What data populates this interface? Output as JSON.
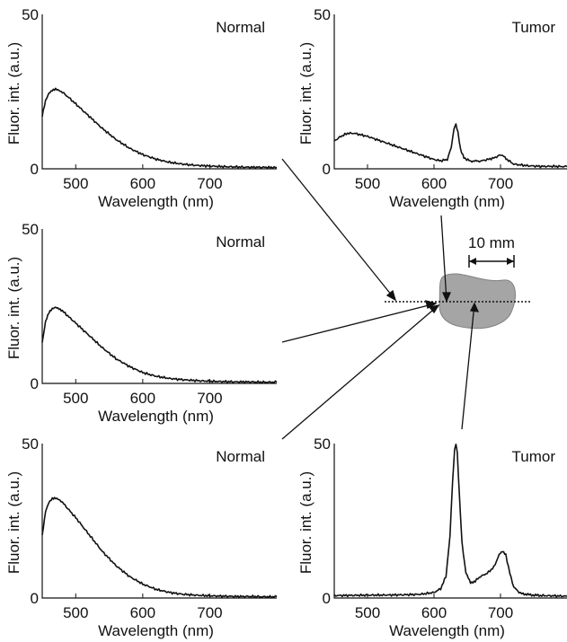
{
  "chart_data": [
    {
      "type": "line",
      "title": "Normal",
      "xlabel": "Wavelength (nm)",
      "ylabel": "Fluor. int. (a.u.)",
      "xlim": [
        450,
        800
      ],
      "ylim": [
        0,
        50
      ],
      "xticks": [
        "500",
        "600",
        "700"
      ],
      "yticks": [
        "0",
        "50"
      ],
      "series": [
        {
          "x": [
            450,
            455,
            460,
            465,
            470,
            475,
            480,
            490,
            500,
            520,
            540,
            560,
            580,
            600,
            620,
            640,
            660,
            680,
            700,
            720,
            740,
            760,
            780,
            800
          ],
          "y": [
            17,
            22,
            24.5,
            25.5,
            26,
            25.5,
            24.8,
            23,
            21,
            17,
            13,
            9.5,
            6.7,
            4.6,
            3.1,
            2.1,
            1.5,
            1.1,
            0.9,
            0.7,
            0.6,
            0.5,
            0.5,
            0.4
          ]
        }
      ]
    },
    {
      "type": "line",
      "title": "Tumor",
      "xlabel": "Wavelength (nm)",
      "ylabel": "Fluor. int. (a.u.)",
      "xlim": [
        450,
        800
      ],
      "ylim": [
        0,
        50
      ],
      "xticks": [
        "500",
        "600",
        "700"
      ],
      "yticks": [
        "0",
        "50"
      ],
      "series": [
        {
          "x": [
            450,
            460,
            470,
            480,
            490,
            500,
            520,
            540,
            560,
            580,
            600,
            610,
            620,
            626,
            630,
            633,
            636,
            640,
            645,
            655,
            670,
            690,
            700,
            705,
            710,
            720,
            740,
            760,
            780,
            800
          ],
          "y": [
            9,
            10.5,
            11.5,
            11.5,
            11,
            10.5,
            9,
            7.5,
            6,
            4.5,
            3,
            2.6,
            3,
            7,
            13,
            14.5,
            12,
            6,
            3.5,
            2.5,
            2.5,
            3.5,
            4.5,
            4.2,
            3,
            1.5,
            1,
            0.8,
            0.8,
            0.7
          ]
        }
      ]
    },
    {
      "type": "line",
      "title": "Normal",
      "xlabel": "Wavelength (nm)",
      "ylabel": "Fluor. int. (a.u.)",
      "xlim": [
        450,
        800
      ],
      "ylim": [
        0,
        50
      ],
      "xticks": [
        "500",
        "600",
        "700"
      ],
      "yticks": [
        "0",
        "50"
      ],
      "series": [
        {
          "x": [
            450,
            455,
            460,
            465,
            470,
            475,
            480,
            490,
            500,
            520,
            540,
            560,
            580,
            600,
            620,
            640,
            660,
            680,
            700,
            720,
            740,
            760,
            780,
            800
          ],
          "y": [
            13,
            20,
            23,
            24.3,
            24.8,
            24.3,
            23.5,
            21.5,
            19.5,
            15.5,
            11.5,
            8,
            5.5,
            3.5,
            2.3,
            1.6,
            1.2,
            0.9,
            0.7,
            0.6,
            0.5,
            0.5,
            0.4,
            0.4
          ]
        }
      ]
    },
    {
      "type": "line",
      "title": "Normal",
      "xlabel": "Wavelength (nm)",
      "ylabel": "Fluor. int. (a.u.)",
      "xlim": [
        450,
        800
      ],
      "ylim": [
        0,
        50
      ],
      "xticks": [
        "500",
        "600",
        "700"
      ],
      "yticks": [
        "0",
        "50"
      ],
      "series": [
        {
          "x": [
            450,
            455,
            460,
            465,
            470,
            475,
            480,
            490,
            500,
            520,
            540,
            560,
            580,
            600,
            620,
            640,
            660,
            680,
            700,
            720,
            740,
            760,
            780,
            800
          ],
          "y": [
            20,
            28,
            31,
            32.3,
            32.5,
            32,
            31,
            28.5,
            26,
            20.5,
            15,
            10.5,
            7,
            4.5,
            2.8,
            1.8,
            1.2,
            0.9,
            0.7,
            0.6,
            0.5,
            0.5,
            0.4,
            0.4
          ]
        }
      ]
    },
    {
      "type": "line",
      "title": "Tumor",
      "xlabel": "Wavelength (nm)",
      "ylabel": "Fluor. int. (a.u.)",
      "xlim": [
        450,
        800
      ],
      "ylim": [
        0,
        50
      ],
      "xticks": [
        "500",
        "600",
        "700"
      ],
      "yticks": [
        "0",
        "50"
      ],
      "series": [
        {
          "x": [
            450,
            500,
            550,
            580,
            600,
            610,
            618,
            624,
            628,
            631,
            633,
            635,
            638,
            642,
            648,
            655,
            662,
            670,
            680,
            690,
            698,
            703,
            708,
            714,
            720,
            730,
            745,
            760,
            780,
            800
          ],
          "y": [
            0.8,
            0.9,
            1,
            1.2,
            1.8,
            3,
            7,
            20,
            38,
            48,
            50,
            47,
            34,
            18,
            8,
            5,
            5.5,
            7,
            8,
            10,
            14,
            15,
            14,
            8,
            3.5,
            1.5,
            1,
            0.8,
            0.7,
            0.6
          ]
        }
      ]
    }
  ],
  "scale_label": "10 mm"
}
